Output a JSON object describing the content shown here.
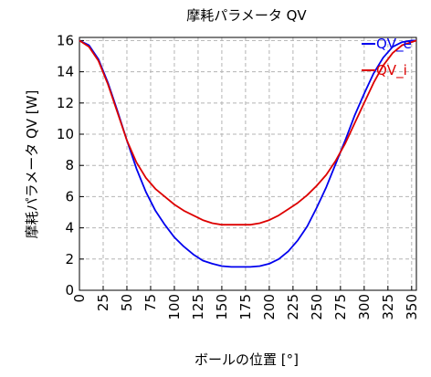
{
  "chart_data": {
    "type": "line",
    "title": "摩耗パラメータ QV",
    "xlabel": "ボールの位置 [°]",
    "ylabel": "摩耗パラメータ QV [W]",
    "xlim": [
      0,
      355
    ],
    "ylim": [
      0,
      16.2
    ],
    "x_ticks": [
      0,
      25,
      50,
      75,
      100,
      125,
      150,
      175,
      200,
      225,
      250,
      275,
      300,
      325,
      350
    ],
    "y_ticks": [
      0,
      2,
      4,
      6,
      8,
      10,
      12,
      14,
      16
    ],
    "grid": true,
    "legend_position": "top-right",
    "x": [
      0,
      10,
      20,
      30,
      40,
      50,
      60,
      70,
      80,
      90,
      100,
      110,
      120,
      130,
      140,
      150,
      160,
      170,
      180,
      190,
      200,
      210,
      220,
      230,
      240,
      250,
      260,
      270,
      280,
      290,
      300,
      310,
      320,
      330,
      340,
      350,
      355
    ],
    "series": [
      {
        "name": "QV_e",
        "color": "#0000ee",
        "values": [
          16.0,
          15.7,
          14.8,
          13.3,
          11.5,
          9.6,
          7.8,
          6.3,
          5.1,
          4.2,
          3.4,
          2.8,
          2.3,
          1.9,
          1.7,
          1.55,
          1.5,
          1.5,
          1.5,
          1.55,
          1.7,
          2.0,
          2.5,
          3.2,
          4.1,
          5.3,
          6.6,
          8.1,
          9.6,
          11.2,
          12.6,
          13.9,
          14.9,
          15.6,
          15.9,
          16.0,
          16.0
        ]
      },
      {
        "name": "QV_i",
        "color": "#dd0000",
        "values": [
          16.0,
          15.6,
          14.7,
          13.2,
          11.4,
          9.6,
          8.2,
          7.2,
          6.5,
          6.0,
          5.5,
          5.1,
          4.8,
          4.5,
          4.3,
          4.2,
          4.2,
          4.2,
          4.2,
          4.3,
          4.5,
          4.8,
          5.2,
          5.6,
          6.1,
          6.7,
          7.4,
          8.3,
          9.4,
          10.7,
          12.0,
          13.3,
          14.4,
          15.2,
          15.7,
          15.9,
          16.0
        ]
      }
    ]
  }
}
